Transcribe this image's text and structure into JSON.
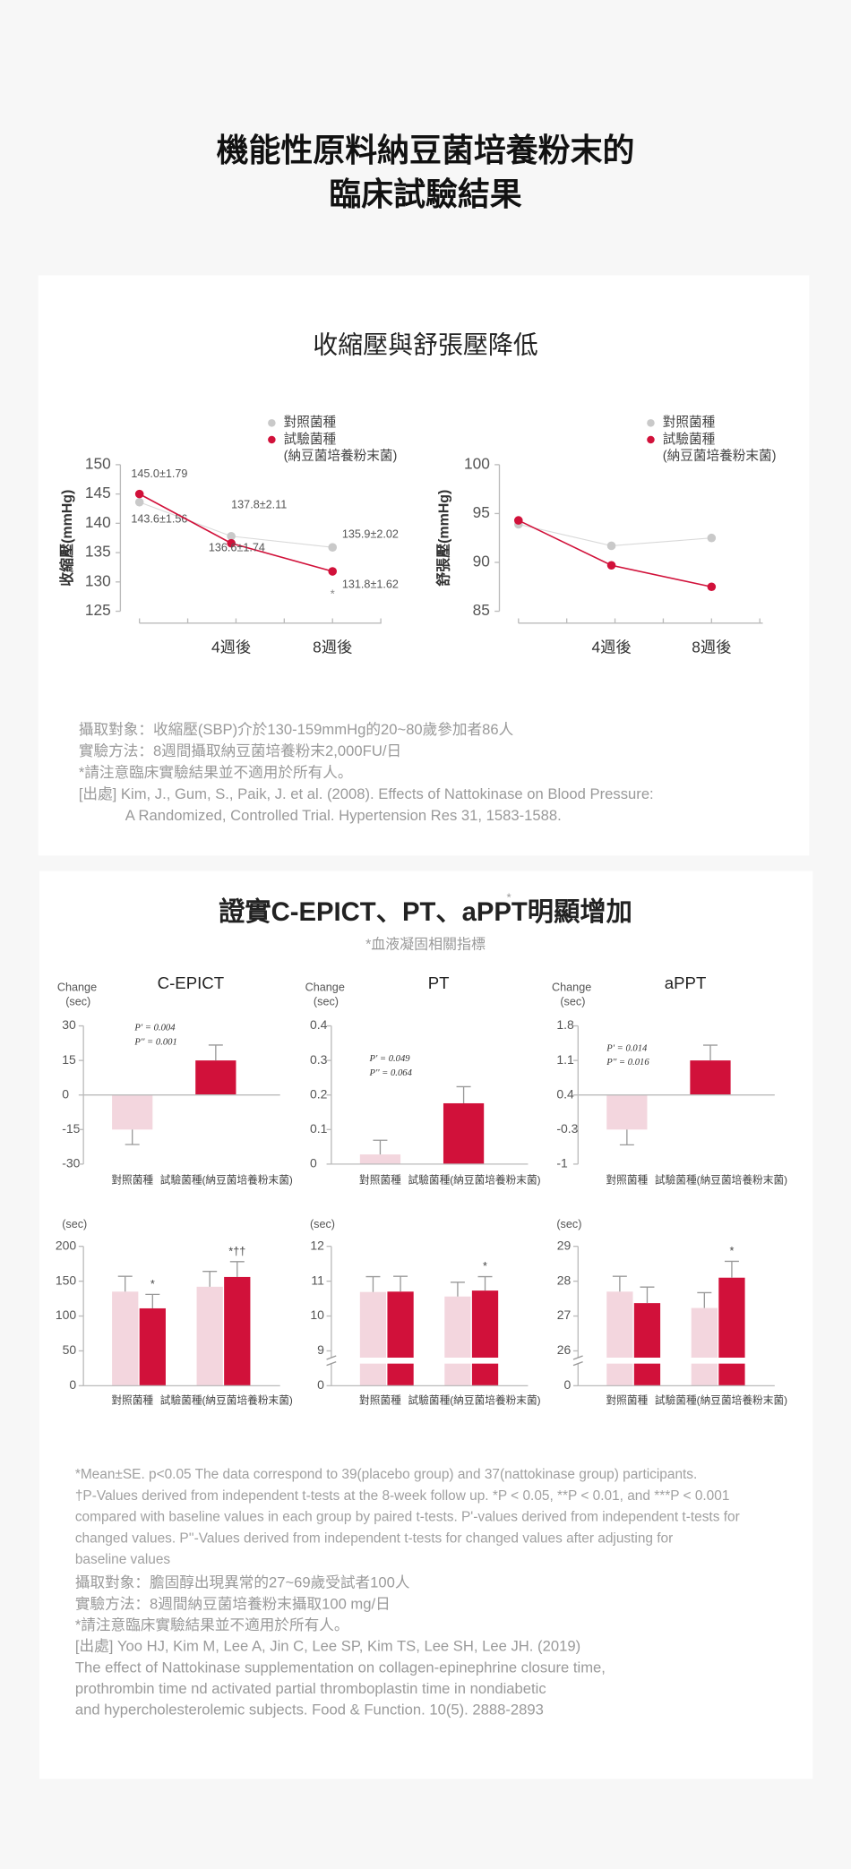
{
  "header": {
    "title_lines": [
      "機能性原料納豆菌培養粉末的",
      "臨床試驗結果"
    ]
  },
  "section1": {
    "title": "收縮壓與舒張壓降低",
    "notes": [
      "攝取對象：收縮壓(SBP)介於130-159mmHg的20~80歲參加者86人",
      "實驗方法：8週間攝取納豆菌培養粉末2,000FU/日",
      "*請注意臨床實驗結果並不適用於所有人。",
      "[出處] Kim, J., Gum, S., Paik, J. et al. (2008). Effects of Nattokinase on Blood Pressure:",
      "A Randomized, Controlled Trial. Hypertension Res 31, 1583-1588."
    ]
  },
  "section2": {
    "title": "證實C-EPICT、PT、aPPT明顯增加",
    "title_mark": "*",
    "subtitle": "*血液凝固相關指標",
    "footnotes": [
      "*Mean±SE. p<0.05 The data correspond to 39(placebo group) and 37(nattokinase group) participants.",
      "†P-Values derived from independent t-tests at the 8-week follow up. *P < 0.05, **P < 0.01, and ***P < 0.001",
      "compared with baseline values in each group by paired t-tests. P'-values derived from independent t-tests for",
      "changed values. P''-Values derived from independent t-tests for changed values after adjusting for",
      "baseline values"
    ],
    "notes": [
      "攝取對象：膽固醇出現異常的27~69歲受試者100人",
      "實驗方法：8週間納豆菌培養粉末攝取100 mg/日",
      "*請注意臨床實驗結果並不適用於所有人。",
      "[出處]  Yoo HJ, Kim M, Lee A, Jin C, Lee SP, Kim TS, Lee SH, Lee JH. (2019)",
      "The effect of Nattokinase supplementation on collagen-epinephrine closure time,",
      " prothrombin time nd activated partial thromboplastin time in nondiabetic",
      "and hypercholesterolemic subjects. Food & Function. 10(5). 2888-2893"
    ]
  },
  "chart_data": [
    {
      "type": "line",
      "ylabel": "收縮壓(mmHg)",
      "categories": [
        null,
        "4週後",
        "8週後"
      ],
      "ylim": [
        125,
        150
      ],
      "yticks": [
        125,
        130,
        135,
        140,
        145,
        150
      ],
      "series": [
        {
          "name": "對照菌種",
          "color": "#c9c9c9",
          "values": [
            143.6,
            137.8,
            135.9
          ],
          "value_labels": [
            "143.6±1.56",
            "137.8±2.11",
            "135.9±2.02"
          ]
        },
        {
          "name": "試驗菌種",
          "legend_note": "(納豆菌培養粉末菌)",
          "color": "#d1113a",
          "values": [
            145.0,
            136.6,
            131.8
          ],
          "value_labels": [
            "145.0±1.79",
            "136.6±1.74",
            "131.8±1.62"
          ]
        }
      ],
      "annotations": [
        "*"
      ]
    },
    {
      "type": "line",
      "ylabel": "舒張壓(mmHg)",
      "categories": [
        null,
        "4週後",
        "8週後"
      ],
      "ylim": [
        85,
        100
      ],
      "yticks": [
        85,
        90,
        95,
        100
      ],
      "series": [
        {
          "name": "對照菌種",
          "color": "#c9c9c9",
          "values": [
            93.9,
            91.7,
            92.5
          ]
        },
        {
          "name": "試驗菌種",
          "legend_note": "(納豆菌培養粉末菌)",
          "color": "#d1113a",
          "values": [
            94.3,
            89.7,
            87.5
          ]
        }
      ]
    },
    {
      "type": "bar",
      "title": "C-EPICT",
      "ylabel": "Change",
      "yunit": "(sec)",
      "categories": [
        "對照菌種",
        "試驗菌種(納豆菌培養粉末菌)"
      ],
      "values": [
        -15,
        15
      ],
      "errors": [
        6.5,
        6.7
      ],
      "colors": [
        "#f3d6de",
        "#d1113a"
      ],
      "ylim": [
        -30,
        30
      ],
      "yticks": [
        -30,
        -15,
        0,
        15,
        30
      ],
      "annotations": [
        "P' = 0.004",
        "P'' = 0.001"
      ]
    },
    {
      "type": "bar",
      "title": "PT",
      "ylabel": "Change",
      "yunit": "(sec)",
      "categories": [
        "對照菌種",
        "試驗菌種(納豆菌培養粉末菌)"
      ],
      "values": [
        0.028,
        0.176
      ],
      "errors": [
        0.041,
        0.048
      ],
      "colors": [
        "#f3d6de",
        "#d1113a"
      ],
      "ylim": [
        0,
        0.4
      ],
      "yticks": [
        0,
        0.1,
        0.2,
        0.3,
        0.4
      ],
      "annotations": [
        "P' = 0.049",
        "P'' = 0.064"
      ]
    },
    {
      "type": "bar",
      "title": "aPPT",
      "ylabel": "Change",
      "yunit": "(sec)",
      "categories": [
        "對照菌種",
        "試驗菌種(納豆菌培養粉末菌)"
      ],
      "values": [
        -0.3,
        1.1
      ],
      "errors": [
        0.31,
        0.31
      ],
      "colors": [
        "#f3d6de",
        "#d1113a"
      ],
      "ylim": [
        -1,
        1.8
      ],
      "yticks": [
        -1,
        -0.3,
        0.4,
        1.1,
        1.8
      ],
      "bar_base": 0.4,
      "annotations": [
        "P' = 0.014",
        "P'' = 0.016"
      ]
    },
    {
      "type": "grouped_bar",
      "yunit": "(sec)",
      "categories": [
        "對照菌種",
        "試驗菌種(納豆菌培養粉末菌)"
      ],
      "ylim": [
        0,
        200
      ],
      "yticks": [
        0,
        50,
        100,
        150,
        200
      ],
      "series": [
        {
          "color": "#f3d6de",
          "values": [
            135,
            142
          ],
          "errors": [
            22,
            22
          ]
        },
        {
          "color": "#d1113a",
          "values": [
            111,
            156
          ],
          "errors": [
            20,
            22
          ],
          "annotations": [
            "*",
            "*††"
          ]
        }
      ]
    },
    {
      "type": "grouped_bar",
      "yunit": "(sec)",
      "categories": [
        "對照菌種",
        "試驗菌種(納豆菌培養粉末菌)"
      ],
      "ylim": [
        0,
        12
      ],
      "yticks": [
        0,
        9,
        10,
        11,
        12
      ],
      "axis_break": true,
      "series": [
        {
          "color": "#f3d6de",
          "values": [
            10.69,
            10.56
          ],
          "errors": [
            0.44,
            0.41
          ]
        },
        {
          "color": "#d1113a",
          "values": [
            10.7,
            10.73
          ],
          "errors": [
            0.44,
            0.4
          ],
          "annotations": [
            null,
            "*"
          ]
        }
      ]
    },
    {
      "type": "grouped_bar",
      "yunit": "(sec)",
      "categories": [
        "對照菌種",
        "試驗菌種(納豆菌培養粉末菌)"
      ],
      "ylim": [
        0,
        29
      ],
      "yticks": [
        0,
        26,
        27,
        28,
        29
      ],
      "axis_break": true,
      "series": [
        {
          "color": "#f3d6de",
          "values": [
            27.7,
            27.23
          ],
          "errors": [
            0.44,
            0.44
          ]
        },
        {
          "color": "#d1113a",
          "values": [
            27.37,
            28.1
          ],
          "errors": [
            0.46,
            0.47
          ],
          "annotations": [
            null,
            "*"
          ]
        }
      ]
    }
  ]
}
